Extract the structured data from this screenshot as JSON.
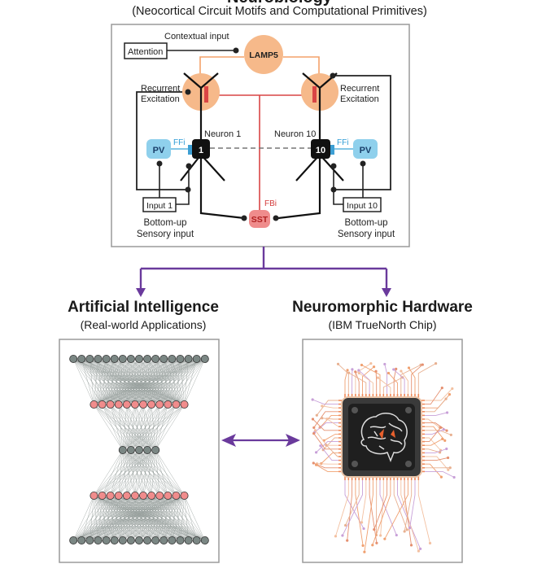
{
  "header": {
    "title": "Neurobiology",
    "subtitle": "(Neocortical Circuit Motifs and Computational Primitives)"
  },
  "circuit": {
    "contextual_input": "Contextual input",
    "attention": "Attention",
    "lamp5": "LAMP5",
    "recurrent_left": [
      "Recurrent",
      "Excitation"
    ],
    "recurrent_right": [
      "Recurrent",
      "Excitation"
    ],
    "neuron1_label": "Neuron 1",
    "neuron10_label": "Neuron 10",
    "neuron1_number": "1",
    "neuron10_number": "10",
    "pv": "PV",
    "ffi": "FFi",
    "fbi": "FBi",
    "sst": "SST",
    "input1": "Input 1",
    "input10": "Input 10",
    "bottom_up_left": [
      "Bottom-up",
      "Sensory input"
    ],
    "bottom_up_right": [
      "Bottom-up",
      "Sensory input"
    ]
  },
  "ai": {
    "title": "Artificial Intelligence",
    "subtitle": "(Real-world Applications)",
    "layers": [
      {
        "nodes": 17,
        "color": "gray"
      },
      {
        "nodes": 12,
        "color": "pink"
      },
      {
        "nodes": 5,
        "color": "gray"
      },
      {
        "nodes": 12,
        "color": "pink"
      },
      {
        "nodes": 17,
        "color": "gray"
      }
    ]
  },
  "hardware": {
    "title": "Neuromorphic Hardware",
    "subtitle": "(IBM TrueNorth Chip)"
  },
  "colors": {
    "arrow_purple": "#6a3a9c",
    "neuron_orange": "#f6b98a",
    "pv_blue": "#8fd0ec",
    "sst_pink": "#ef8c8c",
    "inhibit_red": "#d33a3a",
    "node_gray": "#7b8784",
    "node_pink": "#f08c8c"
  }
}
